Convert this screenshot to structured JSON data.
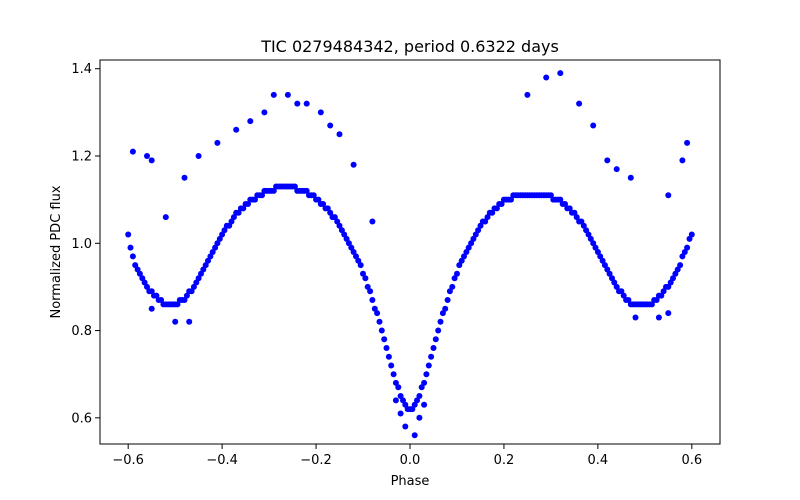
{
  "chart_data": {
    "type": "scatter",
    "title": "TIC 0279484342, period 0.6322 days",
    "xlabel": "Phase",
    "ylabel": "Normalized PDC flux",
    "xlim": [
      -0.66,
      0.66
    ],
    "ylim": [
      0.54,
      1.42
    ],
    "x_ticks": [
      -0.6,
      -0.4,
      -0.2,
      0.0,
      0.2,
      0.4,
      0.6
    ],
    "x_tick_labels": [
      "−0.6",
      "−0.4",
      "−0.2",
      "0.0",
      "0.2",
      "0.4",
      "0.6"
    ],
    "y_ticks": [
      0.6,
      0.8,
      1.0,
      1.2,
      1.4
    ],
    "y_tick_labels": [
      "0.6",
      "0.8",
      "1.0",
      "1.2",
      "1.4"
    ],
    "grid": false,
    "marker_color": "#0000ff",
    "series": [
      {
        "points": [
          [
            -0.6,
            1.02
          ],
          [
            -0.595,
            0.99
          ],
          [
            -0.59,
            0.97
          ],
          [
            -0.585,
            0.95
          ],
          [
            -0.58,
            0.94
          ],
          [
            -0.575,
            0.93
          ],
          [
            -0.57,
            0.92
          ],
          [
            -0.565,
            0.91
          ],
          [
            -0.56,
            0.9
          ],
          [
            -0.555,
            0.89
          ],
          [
            -0.55,
            0.89
          ],
          [
            -0.545,
            0.88
          ],
          [
            -0.54,
            0.88
          ],
          [
            -0.535,
            0.87
          ],
          [
            -0.53,
            0.87
          ],
          [
            -0.525,
            0.86
          ],
          [
            -0.52,
            0.86
          ],
          [
            -0.515,
            0.86
          ],
          [
            -0.51,
            0.86
          ],
          [
            -0.505,
            0.86
          ],
          [
            -0.5,
            0.86
          ],
          [
            -0.495,
            0.86
          ],
          [
            -0.49,
            0.87
          ],
          [
            -0.485,
            0.87
          ],
          [
            -0.48,
            0.87
          ],
          [
            -0.475,
            0.88
          ],
          [
            -0.47,
            0.89
          ],
          [
            -0.465,
            0.89
          ],
          [
            -0.46,
            0.9
          ],
          [
            -0.455,
            0.91
          ],
          [
            -0.45,
            0.92
          ],
          [
            -0.445,
            0.93
          ],
          [
            -0.44,
            0.94
          ],
          [
            -0.435,
            0.95
          ],
          [
            -0.43,
            0.96
          ],
          [
            -0.425,
            0.97
          ],
          [
            -0.42,
            0.98
          ],
          [
            -0.415,
            0.99
          ],
          [
            -0.41,
            1.0
          ],
          [
            -0.405,
            1.01
          ],
          [
            -0.4,
            1.02
          ],
          [
            -0.395,
            1.03
          ],
          [
            -0.39,
            1.04
          ],
          [
            -0.385,
            1.04
          ],
          [
            -0.38,
            1.05
          ],
          [
            -0.375,
            1.06
          ],
          [
            -0.37,
            1.07
          ],
          [
            -0.365,
            1.07
          ],
          [
            -0.36,
            1.08
          ],
          [
            -0.355,
            1.08
          ],
          [
            -0.35,
            1.09
          ],
          [
            -0.345,
            1.09
          ],
          [
            -0.34,
            1.1
          ],
          [
            -0.335,
            1.1
          ],
          [
            -0.33,
            1.1
          ],
          [
            -0.325,
            1.11
          ],
          [
            -0.32,
            1.11
          ],
          [
            -0.315,
            1.11
          ],
          [
            -0.31,
            1.12
          ],
          [
            -0.305,
            1.12
          ],
          [
            -0.3,
            1.12
          ],
          [
            -0.295,
            1.12
          ],
          [
            -0.29,
            1.12
          ],
          [
            -0.285,
            1.13
          ],
          [
            -0.28,
            1.13
          ],
          [
            -0.275,
            1.13
          ],
          [
            -0.27,
            1.13
          ],
          [
            -0.265,
            1.13
          ],
          [
            -0.26,
            1.13
          ],
          [
            -0.255,
            1.13
          ],
          [
            -0.25,
            1.13
          ],
          [
            -0.245,
            1.13
          ],
          [
            -0.24,
            1.12
          ],
          [
            -0.235,
            1.12
          ],
          [
            -0.23,
            1.12
          ],
          [
            -0.225,
            1.12
          ],
          [
            -0.22,
            1.12
          ],
          [
            -0.215,
            1.11
          ],
          [
            -0.21,
            1.11
          ],
          [
            -0.205,
            1.11
          ],
          [
            -0.2,
            1.1
          ],
          [
            -0.195,
            1.1
          ],
          [
            -0.19,
            1.09
          ],
          [
            -0.185,
            1.09
          ],
          [
            -0.18,
            1.08
          ],
          [
            -0.175,
            1.08
          ],
          [
            -0.17,
            1.07
          ],
          [
            -0.165,
            1.06
          ],
          [
            -0.16,
            1.06
          ],
          [
            -0.155,
            1.05
          ],
          [
            -0.15,
            1.04
          ],
          [
            -0.145,
            1.03
          ],
          [
            -0.14,
            1.02
          ],
          [
            -0.135,
            1.01
          ],
          [
            -0.13,
            1.0
          ],
          [
            -0.125,
            0.99
          ],
          [
            -0.12,
            0.98
          ],
          [
            -0.115,
            0.97
          ],
          [
            -0.11,
            0.96
          ],
          [
            -0.105,
            0.95
          ],
          [
            -0.1,
            0.93
          ],
          [
            -0.095,
            0.92
          ],
          [
            -0.09,
            0.9
          ],
          [
            -0.085,
            0.89
          ],
          [
            -0.08,
            0.87
          ],
          [
            -0.075,
            0.85
          ],
          [
            -0.07,
            0.84
          ],
          [
            -0.065,
            0.82
          ],
          [
            -0.06,
            0.8
          ],
          [
            -0.055,
            0.78
          ],
          [
            -0.05,
            0.76
          ],
          [
            -0.045,
            0.74
          ],
          [
            -0.04,
            0.72
          ],
          [
            -0.035,
            0.7
          ],
          [
            -0.03,
            0.68
          ],
          [
            -0.025,
            0.67
          ],
          [
            -0.02,
            0.65
          ],
          [
            -0.015,
            0.64
          ],
          [
            -0.01,
            0.63
          ],
          [
            -0.005,
            0.62
          ],
          [
            0.0,
            0.62
          ],
          [
            0.005,
            0.62
          ],
          [
            0.01,
            0.63
          ],
          [
            0.015,
            0.64
          ],
          [
            0.02,
            0.65
          ],
          [
            0.025,
            0.67
          ],
          [
            0.03,
            0.68
          ],
          [
            0.035,
            0.7
          ],
          [
            0.04,
            0.72
          ],
          [
            0.045,
            0.74
          ],
          [
            0.05,
            0.76
          ],
          [
            0.055,
            0.78
          ],
          [
            0.06,
            0.8
          ],
          [
            0.065,
            0.82
          ],
          [
            0.07,
            0.84
          ],
          [
            0.075,
            0.85
          ],
          [
            0.08,
            0.87
          ],
          [
            0.085,
            0.89
          ],
          [
            0.09,
            0.9
          ],
          [
            0.095,
            0.92
          ],
          [
            0.1,
            0.93
          ],
          [
            0.105,
            0.95
          ],
          [
            0.11,
            0.96
          ],
          [
            0.115,
            0.97
          ],
          [
            0.12,
            0.98
          ],
          [
            0.125,
            0.99
          ],
          [
            0.13,
            1.0
          ],
          [
            0.135,
            1.01
          ],
          [
            0.14,
            1.02
          ],
          [
            0.145,
            1.03
          ],
          [
            0.15,
            1.04
          ],
          [
            0.155,
            1.05
          ],
          [
            0.16,
            1.05
          ],
          [
            0.165,
            1.06
          ],
          [
            0.17,
            1.07
          ],
          [
            0.175,
            1.07
          ],
          [
            0.18,
            1.08
          ],
          [
            0.185,
            1.08
          ],
          [
            0.19,
            1.09
          ],
          [
            0.195,
            1.09
          ],
          [
            0.2,
            1.1
          ],
          [
            0.205,
            1.1
          ],
          [
            0.21,
            1.1
          ],
          [
            0.215,
            1.1
          ],
          [
            0.22,
            1.11
          ],
          [
            0.225,
            1.11
          ],
          [
            0.23,
            1.11
          ],
          [
            0.235,
            1.11
          ],
          [
            0.24,
            1.11
          ],
          [
            0.245,
            1.11
          ],
          [
            0.25,
            1.11
          ],
          [
            0.255,
            1.11
          ],
          [
            0.26,
            1.11
          ],
          [
            0.265,
            1.11
          ],
          [
            0.27,
            1.11
          ],
          [
            0.275,
            1.11
          ],
          [
            0.28,
            1.11
          ],
          [
            0.285,
            1.11
          ],
          [
            0.29,
            1.11
          ],
          [
            0.295,
            1.11
          ],
          [
            0.3,
            1.11
          ],
          [
            0.305,
            1.1
          ],
          [
            0.31,
            1.1
          ],
          [
            0.315,
            1.1
          ],
          [
            0.32,
            1.1
          ],
          [
            0.325,
            1.09
          ],
          [
            0.33,
            1.09
          ],
          [
            0.335,
            1.08
          ],
          [
            0.34,
            1.08
          ],
          [
            0.345,
            1.07
          ],
          [
            0.35,
            1.07
          ],
          [
            0.355,
            1.06
          ],
          [
            0.36,
            1.05
          ],
          [
            0.365,
            1.05
          ],
          [
            0.37,
            1.04
          ],
          [
            0.375,
            1.03
          ],
          [
            0.38,
            1.02
          ],
          [
            0.385,
            1.01
          ],
          [
            0.39,
            1.0
          ],
          [
            0.395,
            0.99
          ],
          [
            0.4,
            0.98
          ],
          [
            0.405,
            0.97
          ],
          [
            0.41,
            0.96
          ],
          [
            0.415,
            0.95
          ],
          [
            0.42,
            0.94
          ],
          [
            0.425,
            0.93
          ],
          [
            0.43,
            0.92
          ],
          [
            0.435,
            0.91
          ],
          [
            0.44,
            0.9
          ],
          [
            0.445,
            0.89
          ],
          [
            0.45,
            0.89
          ],
          [
            0.455,
            0.88
          ],
          [
            0.46,
            0.87
          ],
          [
            0.465,
            0.87
          ],
          [
            0.47,
            0.86
          ],
          [
            0.475,
            0.86
          ],
          [
            0.48,
            0.86
          ],
          [
            0.485,
            0.86
          ],
          [
            0.49,
            0.86
          ],
          [
            0.495,
            0.86
          ],
          [
            0.5,
            0.86
          ],
          [
            0.505,
            0.86
          ],
          [
            0.51,
            0.86
          ],
          [
            0.515,
            0.86
          ],
          [
            0.52,
            0.87
          ],
          [
            0.525,
            0.87
          ],
          [
            0.53,
            0.88
          ],
          [
            0.535,
            0.88
          ],
          [
            0.54,
            0.89
          ],
          [
            0.545,
            0.9
          ],
          [
            0.55,
            0.9
          ],
          [
            0.555,
            0.91
          ],
          [
            0.56,
            0.92
          ],
          [
            0.565,
            0.93
          ],
          [
            0.57,
            0.94
          ],
          [
            0.575,
            0.95
          ],
          [
            0.58,
            0.97
          ],
          [
            0.585,
            0.98
          ],
          [
            0.59,
            0.99
          ],
          [
            0.595,
            1.01
          ],
          [
            0.6,
            1.02
          ],
          [
            -0.59,
            1.21
          ],
          [
            -0.56,
            1.2
          ],
          [
            -0.55,
            1.19
          ],
          [
            -0.52,
            1.06
          ],
          [
            -0.48,
            1.15
          ],
          [
            -0.45,
            1.2
          ],
          [
            -0.41,
            1.23
          ],
          [
            -0.37,
            1.26
          ],
          [
            -0.34,
            1.28
          ],
          [
            -0.31,
            1.3
          ],
          [
            -0.29,
            1.34
          ],
          [
            -0.26,
            1.34
          ],
          [
            -0.24,
            1.32
          ],
          [
            -0.22,
            1.32
          ],
          [
            -0.19,
            1.3
          ],
          [
            -0.17,
            1.27
          ],
          [
            -0.15,
            1.25
          ],
          [
            -0.12,
            1.18
          ],
          [
            -0.08,
            1.05
          ],
          [
            0.25,
            1.34
          ],
          [
            0.29,
            1.38
          ],
          [
            0.32,
            1.39
          ],
          [
            0.36,
            1.32
          ],
          [
            0.39,
            1.27
          ],
          [
            0.42,
            1.19
          ],
          [
            0.44,
            1.17
          ],
          [
            0.47,
            1.15
          ],
          [
            0.55,
            1.11
          ],
          [
            0.58,
            1.19
          ],
          [
            0.59,
            1.23
          ],
          [
            0.01,
            0.56
          ],
          [
            -0.01,
            0.58
          ],
          [
            0.02,
            0.6
          ],
          [
            -0.02,
            0.61
          ],
          [
            0.03,
            0.63
          ],
          [
            -0.03,
            0.64
          ],
          [
            -0.5,
            0.82
          ],
          [
            -0.47,
            0.82
          ],
          [
            0.48,
            0.83
          ],
          [
            0.53,
            0.83
          ],
          [
            -0.55,
            0.85
          ],
          [
            0.55,
            0.84
          ]
        ]
      }
    ]
  }
}
